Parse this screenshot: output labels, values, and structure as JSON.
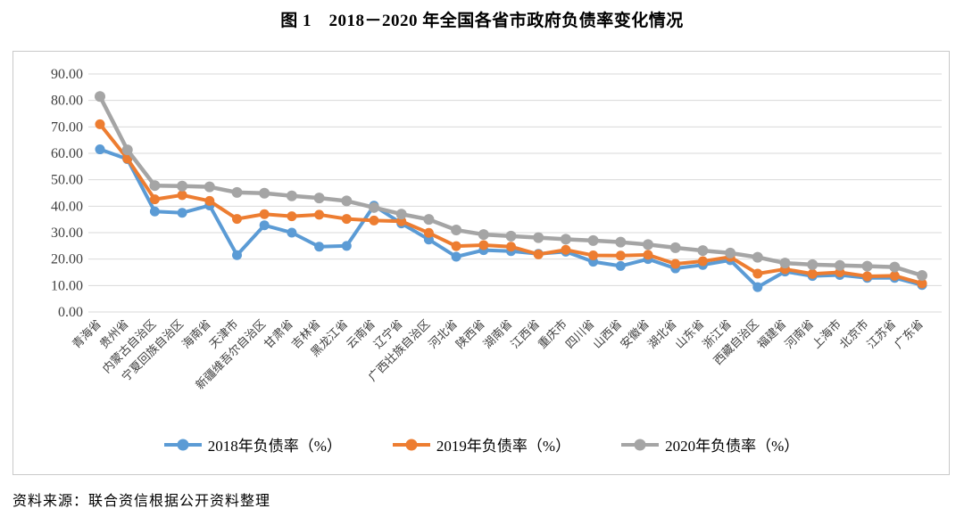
{
  "page": {
    "title": "图 1　2018－2020 年全国各省市政府负债率变化情况",
    "source": "资料来源：联合资信根据公开资料整理"
  },
  "chart_data": {
    "type": "line",
    "title": "图 1　2018－2020 年全国各省市政府负债率变化情况",
    "categories": [
      "青海省",
      "贵州省",
      "内蒙古自治区",
      "宁夏回族自治区",
      "海南省",
      "天津市",
      "新疆维吾尔自治区",
      "甘肃省",
      "吉林省",
      "黑龙江省",
      "云南省",
      "辽宁省",
      "广西壮族自治区",
      "河北省",
      "陕西省",
      "湖南省",
      "江西省",
      "重庆市",
      "四川省",
      "山西省",
      "安徽省",
      "湖北省",
      "山东省",
      "浙江省",
      "西藏自治区",
      "福建省",
      "河南省",
      "上海市",
      "北京市",
      "江苏省",
      "广东省"
    ],
    "series": [
      {
        "name": "2018年负债率（%）",
        "color": "#5B9BD5",
        "values": [
          61.5,
          57.8,
          38.0,
          37.5,
          40.3,
          21.5,
          32.8,
          30.0,
          24.7,
          25.0,
          40.2,
          33.5,
          27.4,
          20.9,
          23.4,
          23.0,
          22.0,
          22.8,
          19.0,
          17.4,
          20.0,
          16.5,
          17.8,
          19.6,
          9.4,
          15.3,
          13.6,
          14.0,
          12.9,
          12.9,
          10.2
        ]
      },
      {
        "name": "2019年负债率（%）",
        "color": "#ED7D31",
        "values": [
          71.0,
          58.0,
          42.6,
          44.2,
          42.0,
          35.2,
          37.0,
          36.2,
          36.8,
          35.2,
          34.6,
          34.3,
          29.9,
          24.9,
          25.3,
          24.7,
          21.8,
          23.5,
          21.4,
          21.3,
          21.6,
          18.2,
          19.2,
          20.8,
          14.5,
          16.2,
          14.4,
          15.0,
          13.5,
          13.7,
          10.8
        ]
      },
      {
        "name": "2020年负债率（%）",
        "color": "#A5A5A5",
        "values": [
          81.5,
          61.3,
          47.8,
          47.6,
          47.3,
          45.2,
          44.9,
          43.9,
          43.1,
          42.0,
          39.5,
          37.0,
          35.0,
          31.0,
          29.3,
          28.7,
          28.1,
          27.5,
          27.0,
          26.4,
          25.5,
          24.3,
          23.2,
          22.3,
          20.7,
          18.5,
          17.9,
          17.6,
          17.3,
          17.0,
          13.8
        ]
      }
    ],
    "ylim": [
      0,
      90
    ],
    "ytick_step": 10,
    "ytick_decimals": 2,
    "grid": true,
    "legend_position": "bottom",
    "xlabel": "",
    "ylabel": ""
  },
  "style": {
    "grid_color": "#d9d9d9",
    "axis_text_color": "#404040",
    "border_color": "#c9c9c9"
  }
}
